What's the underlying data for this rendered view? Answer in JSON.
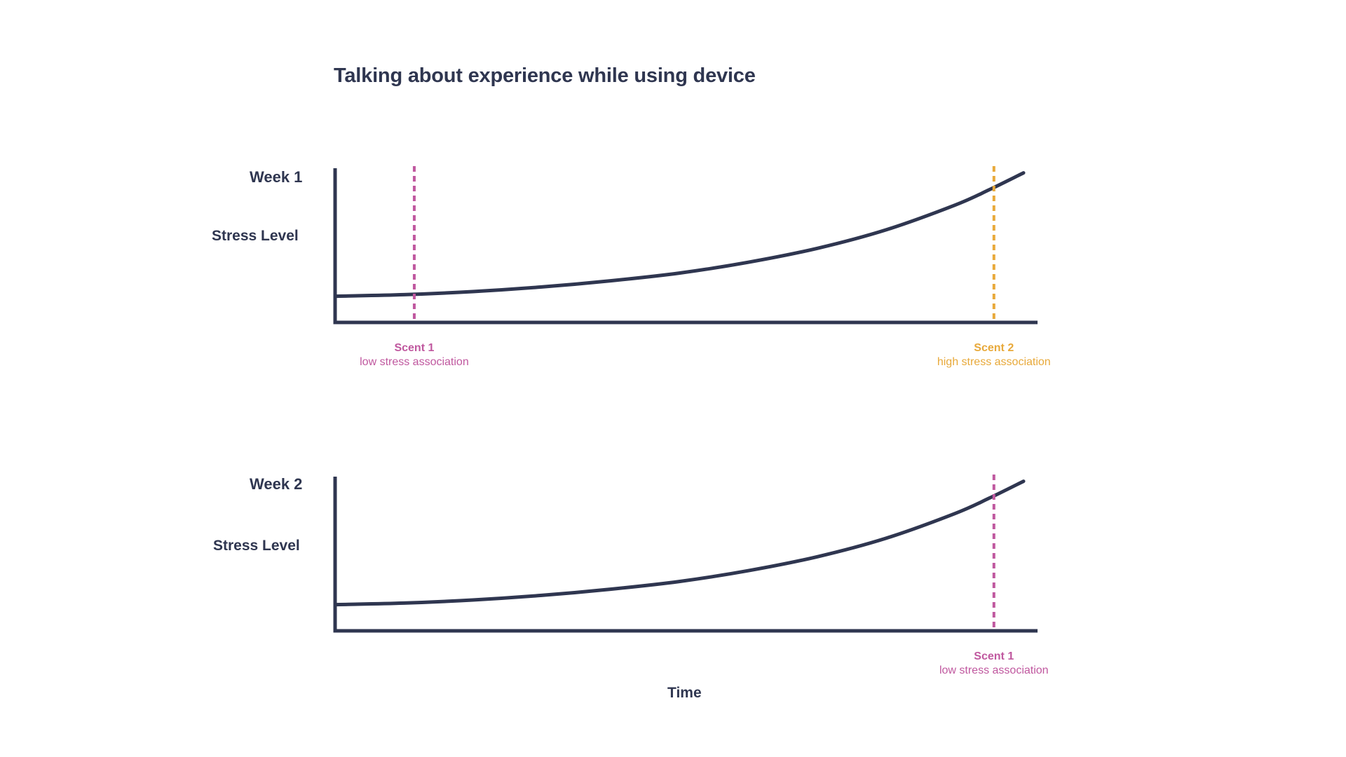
{
  "title": "Talking about experience while using device",
  "colors": {
    "axis": "#2f3650",
    "curve": "#2f3650",
    "scent1": "#c0589f",
    "scent2": "#e8a93a",
    "text": "#2f3650"
  },
  "xlabel": "Time",
  "chart_data": [
    {
      "type": "line",
      "title": "Week 1",
      "ylabel": "Stress Level",
      "xlabel": "",
      "grid": false,
      "series": [
        {
          "x": [
            0,
            0.1,
            0.2,
            0.3,
            0.4,
            0.5,
            0.6,
            0.7,
            0.8,
            0.9,
            0.95,
            1.0
          ],
          "y": [
            0.17,
            0.18,
            0.2,
            0.23,
            0.27,
            0.32,
            0.39,
            0.48,
            0.6,
            0.76,
            0.86,
            0.97
          ]
        }
      ],
      "markers": [
        {
          "x": 0.115,
          "label": "Scent 1",
          "note": "low stress association",
          "color": "#c0589f"
        },
        {
          "x": 0.957,
          "label": "Scent 2",
          "note": "high stress association",
          "color": "#e8a93a"
        }
      ]
    },
    {
      "type": "line",
      "title": "Week 2",
      "ylabel": "Stress Level",
      "xlabel": "Time",
      "grid": false,
      "series": [
        {
          "x": [
            0,
            0.1,
            0.2,
            0.3,
            0.4,
            0.5,
            0.6,
            0.7,
            0.8,
            0.9,
            0.95,
            1.0
          ],
          "y": [
            0.17,
            0.18,
            0.2,
            0.23,
            0.27,
            0.32,
            0.39,
            0.48,
            0.6,
            0.76,
            0.86,
            0.97
          ]
        }
      ],
      "markers": [
        {
          "x": 0.957,
          "label": "Scent 1",
          "note": "low stress association",
          "color": "#c0589f"
        }
      ]
    }
  ]
}
